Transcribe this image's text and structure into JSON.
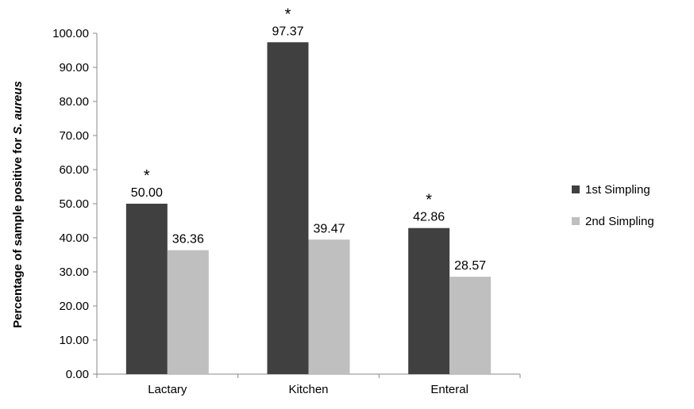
{
  "chart_data": {
    "type": "bar",
    "categories": [
      "Lactary",
      "Kitchen",
      "Enteral"
    ],
    "series": [
      {
        "name": "1st  Simpling",
        "color": "#404040",
        "values": [
          50.0,
          97.37,
          42.86
        ],
        "labels": [
          "50.00",
          "97.37",
          "42.86"
        ],
        "annotations": [
          "*",
          "*",
          "*"
        ]
      },
      {
        "name": "2nd Simpling",
        "color": "#bfbfbf",
        "values": [
          36.36,
          39.47,
          28.57
        ],
        "labels": [
          "36.36",
          "39.47",
          "28.57"
        ],
        "annotations": [
          "",
          "",
          ""
        ]
      }
    ],
    "ylabel_prefix": "Percentage of  sample positive for ",
    "ylabel_italic": "S. aureus",
    "ylim": [
      0,
      100
    ],
    "yticks": [
      "0.00",
      "10.00",
      "20.00",
      "30.00",
      "40.00",
      "50.00",
      "60.00",
      "70.00",
      "80.00",
      "90.00",
      "100.00"
    ],
    "grid": false,
    "legend_position": "right"
  }
}
